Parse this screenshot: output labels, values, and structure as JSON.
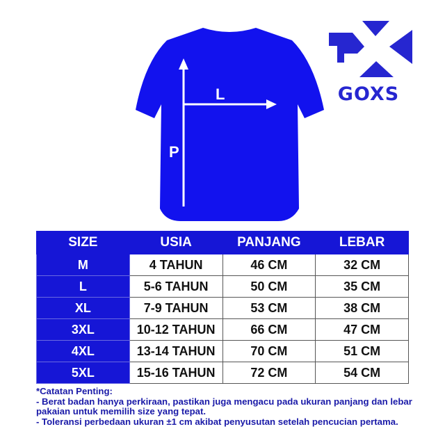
{
  "colors": {
    "brand_blue": "#1616d6",
    "shirt_blue": "#1212ee",
    "note_text": "#1a1aa8"
  },
  "diagram": {
    "width_label": "L",
    "length_label": "P"
  },
  "logo": {
    "text": "GOXS"
  },
  "table": {
    "headers": [
      "SIZE",
      "USIA",
      "PANJANG",
      "LEBAR"
    ],
    "rows": [
      [
        "M",
        "4 TAHUN",
        "46 CM",
        "32 CM"
      ],
      [
        "L",
        "5-6 TAHUN",
        "50 CM",
        "35 CM"
      ],
      [
        "XL",
        "7-9 TAHUN",
        "53 CM",
        "38 CM"
      ],
      [
        "3XL",
        "10-12 TAHUN",
        "66 CM",
        "47 CM"
      ],
      [
        "4XL",
        "13-14 TAHUN",
        "70 CM",
        "51 CM"
      ],
      [
        "5XL",
        "15-16 TAHUN",
        "72 CM",
        "54 CM"
      ]
    ]
  },
  "notes": {
    "title": "*Catatan Penting:",
    "items": [
      "- Berat badan hanya perkiraan, pastikan juga mengacu pada ukuran panjang dan lebar pakaian untuk memilih size yang tepat.",
      "- Toleransi perbedaan ukuran ±1 cm akibat penyusutan setelah pencucian pertama."
    ]
  }
}
